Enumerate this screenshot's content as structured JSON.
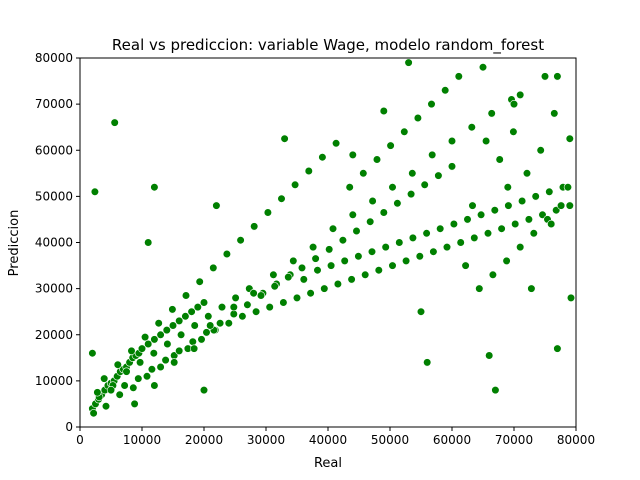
{
  "chart_data": {
    "type": "scatter",
    "title": "Real vs prediccion: variable Wage, modelo random_forest",
    "xlabel": "Real",
    "ylabel": "Prediccion",
    "xlim": [
      0,
      80000
    ],
    "ylim": [
      0,
      80000
    ],
    "xticks": [
      0,
      10000,
      20000,
      30000,
      40000,
      50000,
      60000,
      70000,
      80000
    ],
    "yticks": [
      0,
      10000,
      20000,
      30000,
      40000,
      50000,
      60000,
      70000,
      80000
    ],
    "xtick_labels": [
      "0",
      "10000",
      "20000",
      "30000",
      "40000",
      "50000",
      "60000",
      "70000",
      "80000"
    ],
    "ytick_labels": [
      "0",
      "10000",
      "20000",
      "30000",
      "40000",
      "50000",
      "60000",
      "70000",
      "80000"
    ],
    "grid": false,
    "legend": "none",
    "marker_color": "#008000",
    "marker_edge_color": "#ffffff",
    "series": [
      {
        "x": [
          2000,
          2500,
          3000,
          3500,
          4000,
          4500,
          5000,
          5500,
          6000,
          6500,
          7000,
          7500,
          8000,
          8500,
          9000,
          9500,
          10000,
          11000,
          12000,
          13000,
          14000,
          15000,
          16000,
          17000,
          18000,
          19000,
          20000,
          2200,
          3100,
          4200,
          5300,
          6400,
          7500,
          8600,
          9700,
          10800,
          11900,
          13000,
          14100,
          15200,
          16300,
          17400,
          18500,
          19600,
          20700,
          21800,
          22900,
          24000,
          25100,
          26200,
          27300,
          28400,
          29500,
          30600,
          31700,
          32800,
          33900,
          35000,
          36100,
          37200,
          38300,
          39400,
          40500,
          41600,
          42700,
          43800,
          44900,
          46000,
          47100,
          48200,
          49300,
          50400,
          51500,
          52600,
          53700,
          54800,
          55900,
          57000,
          58100,
          59200,
          60300,
          61400,
          62500,
          63600,
          64700,
          65800,
          66900,
          68000,
          69100,
          70200,
          71300,
          72400,
          73500,
          74600,
          75700,
          76800,
          77900,
          79000,
          2800,
          3900,
          5000,
          6100,
          7200,
          8300,
          9400,
          10500,
          11600,
          12700,
          13800,
          14900,
          16000,
          17100,
          18200,
          19300,
          20400,
          21500,
          22600,
          23700,
          24800,
          25900,
          27000,
          28100,
          29200,
          30300,
          31400,
          32500,
          33600,
          34700,
          35800,
          36900,
          38000,
          39100,
          40200,
          41300,
          42400,
          43500,
          44600,
          45700,
          46800,
          47900,
          49000,
          50100,
          51200,
          52300,
          53400,
          54500,
          55600,
          56700,
          57800,
          58900,
          60000,
          61100,
          62200,
          63300,
          64400,
          65500,
          66600,
          67700,
          68800,
          69900,
          71000,
          72100,
          73200,
          74300,
          75400,
          76500,
          77600,
          78700,
          2400,
          5600,
          8800,
          12000,
          15200,
          18400,
          21600,
          24800,
          28000,
          31200,
          34400,
          37600,
          40800,
          44000,
          47200,
          50400,
          53600,
          56800,
          60000,
          63200,
          66400,
          69600,
          72800,
          76000,
          79200,
          11000,
          22000,
          33000,
          44000,
          55000,
          66000,
          77000,
          21000,
          20000,
          67000,
          65000,
          49000,
          53000,
          71000,
          75000,
          77000,
          79000,
          56000,
          69000,
          70000,
          12000,
          2000
        ],
        "y": [
          4000,
          5000,
          6000,
          7000,
          8000,
          9000,
          9500,
          10000,
          11000,
          12000,
          12500,
          13000,
          14000,
          15000,
          15500,
          16000,
          17000,
          18000,
          19000,
          20000,
          21000,
          22000,
          23000,
          24000,
          25000,
          26000,
          27000,
          3000,
          6500,
          4500,
          9000,
          7000,
          12000,
          8500,
          14000,
          11000,
          16000,
          13000,
          18000,
          15500,
          20000,
          17000,
          22000,
          19000,
          24000,
          21000,
          26000,
          22500,
          28000,
          24000,
          30000,
          25000,
          29000,
          26000,
          31000,
          27000,
          33000,
          28000,
          32000,
          29000,
          34000,
          30000,
          35000,
          31000,
          36000,
          32000,
          37000,
          33000,
          38000,
          34000,
          39000,
          35000,
          40000,
          36000,
          41000,
          37000,
          42000,
          38000,
          43000,
          39000,
          44000,
          40000,
          45000,
          41000,
          46000,
          42000,
          47000,
          43000,
          48000,
          44000,
          49000,
          45000,
          50000,
          46000,
          51000,
          47000,
          52000,
          48000,
          7500,
          10500,
          8000,
          13500,
          9000,
          16500,
          10500,
          19500,
          12500,
          22500,
          14500,
          25500,
          16500,
          28500,
          18500,
          31500,
          20500,
          34500,
          22500,
          37500,
          24500,
          40500,
          26500,
          43500,
          28500,
          46500,
          30500,
          49500,
          32500,
          52500,
          34500,
          55500,
          36500,
          58500,
          38500,
          61500,
          40500,
          52000,
          42500,
          55000,
          44500,
          58000,
          46500,
          61000,
          48500,
          64000,
          50500,
          67000,
          52500,
          70000,
          54500,
          73000,
          56500,
          76000,
          35000,
          48000,
          30000,
          62000,
          33000,
          58000,
          36000,
          64000,
          39000,
          55000,
          42000,
          60000,
          45000,
          68000,
          48000,
          52000,
          51000,
          66000,
          5000,
          9000,
          14000,
          17000,
          21000,
          26000,
          29000,
          33000,
          36000,
          39000,
          43000,
          46000,
          49000,
          52000,
          55000,
          59000,
          62000,
          65000,
          68000,
          71000,
          30000,
          44000,
          28000,
          40000,
          48000,
          62500,
          59000,
          25000,
          15500,
          17000,
          22000,
          8000,
          8000,
          78000,
          68500,
          79000,
          72000,
          76000,
          76000,
          62500,
          14000,
          52000,
          70000,
          52000,
          16000
        ]
      }
    ]
  }
}
